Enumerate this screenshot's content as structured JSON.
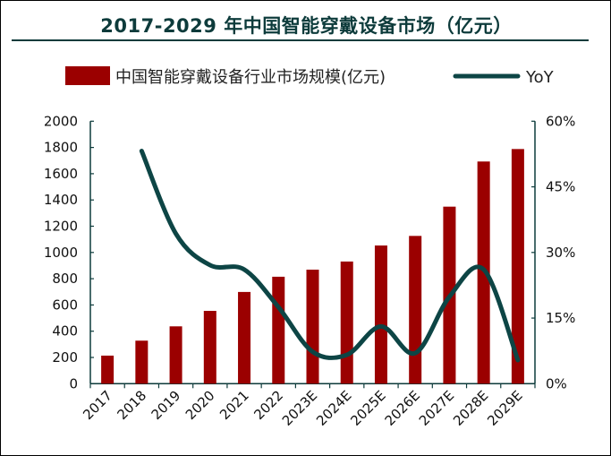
{
  "chart_data": {
    "type": "bar+line",
    "title": "2017-2029 年中国智能穿戴设备市场（亿元）",
    "categories": [
      "2017",
      "2018",
      "2019",
      "2020",
      "2021",
      "2022",
      "2023E",
      "2024E",
      "2025E",
      "2026E",
      "2027E",
      "2028E",
      "2029E"
    ],
    "series": [
      {
        "name": "中国智能穿戴设备行业市场规模(亿元)",
        "type": "bar",
        "axis": "left",
        "color": "#9b0000",
        "values": [
          214,
          328,
          437,
          555,
          699,
          815,
          869,
          931,
          1053,
          1126,
          1349,
          1693,
          1788
        ]
      },
      {
        "name": "YoY",
        "type": "line",
        "axis": "right",
        "color": "#0d4545",
        "values": [
          null,
          53.2,
          34.3,
          27.1,
          26.1,
          17.5,
          7.3,
          6.6,
          13.1,
          7.0,
          19.9,
          26.1,
          5.4
        ]
      }
    ],
    "y_left": {
      "range": [
        0,
        2000
      ],
      "ticks": [
        "0",
        "200",
        "400",
        "600",
        "800",
        "1000",
        "1200",
        "1400",
        "1600",
        "1800",
        "2000"
      ]
    },
    "y_right": {
      "range": [
        0,
        60
      ],
      "ticks": [
        "0%",
        "15%",
        "30%",
        "45%",
        "60%"
      ]
    },
    "legend": "top",
    "grid": false
  }
}
